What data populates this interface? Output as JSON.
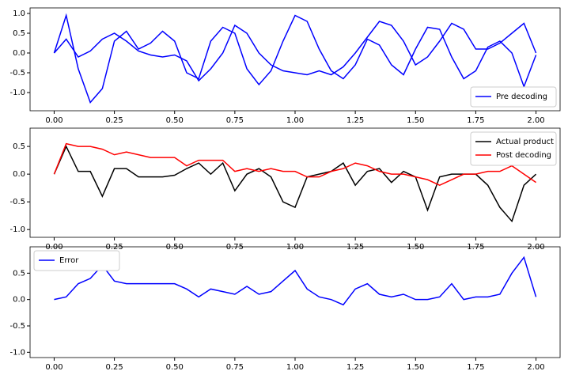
{
  "chart_data": [
    {
      "type": "line",
      "legend": "lower right",
      "xlim": [
        -0.1,
        2.1
      ],
      "ylim": [
        -1.46,
        1.14
      ],
      "xticks": [
        {
          "value": 0,
          "label": "0.00"
        },
        {
          "value": 0.25,
          "label": "0.25"
        },
        {
          "value": 0.5,
          "label": "0.50"
        },
        {
          "value": 0.75,
          "label": "0.75"
        },
        {
          "value": 1,
          "label": "1.00"
        },
        {
          "value": 1.25,
          "label": "1.25"
        },
        {
          "value": 1.5,
          "label": "1.50"
        },
        {
          "value": 1.75,
          "label": "1.75"
        },
        {
          "value": 2,
          "label": "2.00"
        }
      ],
      "yticks": [
        {
          "value": -1,
          "label": "-1.0"
        },
        {
          "value": -0.5,
          "label": "-0.5"
        },
        {
          "value": 0,
          "label": "0.0"
        },
        {
          "value": 0.5,
          "label": "0.5"
        },
        {
          "value": 1,
          "label": "1.0"
        }
      ],
      "x": [
        0,
        0.05,
        0.1,
        0.15,
        0.2,
        0.25,
        0.3,
        0.35,
        0.4,
        0.45,
        0.5,
        0.55,
        0.6,
        0.65,
        0.7,
        0.75,
        0.8,
        0.85,
        0.9,
        0.95,
        1,
        1.05,
        1.1,
        1.15,
        1.2,
        1.25,
        1.3,
        1.35,
        1.4,
        1.45,
        1.5,
        1.55,
        1.6,
        1.65,
        1.7,
        1.75,
        1.8,
        1.85,
        1.9,
        1.95,
        2
      ],
      "series": [
        {
          "name": "Pre decoding",
          "color": "#0000ff",
          "values": [
            0,
            0.95,
            -0.4,
            -1.25,
            -0.9,
            0.3,
            0.55,
            0.1,
            0.25,
            0.55,
            0.3,
            -0.5,
            -0.65,
            0.3,
            0.65,
            0.5,
            -0.4,
            -0.8,
            -0.45,
            0.3,
            0.95,
            0.8,
            0.1,
            -0.45,
            -0.65,
            -0.3,
            0.35,
            0.2,
            -0.3,
            -0.55,
            0.1,
            0.65,
            0.6,
            -0.1,
            -0.65,
            -0.45,
            0.15,
            0.3,
            0.0,
            -0.85,
            -0.05
          ]
        },
        {
          "color": "#0000ff",
          "values": [
            0,
            0.35,
            -0.1,
            0.05,
            0.35,
            0.5,
            0.3,
            0.05,
            -0.05,
            -0.1,
            -0.05,
            -0.2,
            -0.7,
            -0.4,
            0.0,
            0.7,
            0.5,
            0.0,
            -0.3,
            -0.45,
            -0.5,
            -0.55,
            -0.45,
            -0.55,
            -0.35,
            0.0,
            0.4,
            0.8,
            0.7,
            0.3,
            -0.3,
            -0.1,
            0.3,
            0.75,
            0.6,
            0.1,
            0.1,
            0.25,
            0.5,
            0.75,
            0.0
          ]
        }
      ]
    },
    {
      "type": "line",
      "legend": "upper right",
      "xlim": [
        -0.1,
        2.1
      ],
      "ylim": [
        -1.14,
        0.83
      ],
      "xticks": [
        {
          "value": 0,
          "label": "0.00"
        },
        {
          "value": 0.25,
          "label": "0.25"
        },
        {
          "value": 0.5,
          "label": "0.50"
        },
        {
          "value": 0.75,
          "label": "0.75"
        },
        {
          "value": 1,
          "label": "1.00"
        },
        {
          "value": 1.25,
          "label": "1.25"
        },
        {
          "value": 1.5,
          "label": "1.50"
        },
        {
          "value": 1.75,
          "label": "1.75"
        },
        {
          "value": 2,
          "label": "2.00"
        }
      ],
      "yticks": [
        {
          "value": -1,
          "label": "-1.0"
        },
        {
          "value": -0.5,
          "label": "-0.5"
        },
        {
          "value": 0,
          "label": "0.0"
        },
        {
          "value": 0.5,
          "label": "0.5"
        }
      ],
      "x": [
        0,
        0.05,
        0.1,
        0.15,
        0.2,
        0.25,
        0.3,
        0.35,
        0.4,
        0.45,
        0.5,
        0.55,
        0.6,
        0.65,
        0.7,
        0.75,
        0.8,
        0.85,
        0.9,
        0.95,
        1,
        1.05,
        1.1,
        1.15,
        1.2,
        1.25,
        1.3,
        1.35,
        1.4,
        1.45,
        1.5,
        1.55,
        1.6,
        1.65,
        1.7,
        1.75,
        1.8,
        1.85,
        1.9,
        1.95,
        2
      ],
      "series": [
        {
          "name": "Actual product",
          "color": "#000000",
          "values": [
            0,
            0.5,
            0.05,
            0.05,
            -0.4,
            0.1,
            0.1,
            -0.05,
            -0.05,
            -0.05,
            -0.02,
            0.1,
            0.2,
            0.0,
            0.2,
            -0.3,
            0.0,
            0.1,
            -0.05,
            -0.5,
            -0.6,
            -0.05,
            0.0,
            0.05,
            0.2,
            -0.2,
            0.05,
            0.1,
            -0.15,
            0.05,
            -0.05,
            -0.65,
            -0.05,
            0.0,
            0.0,
            0.0,
            -0.2,
            -0.6,
            -0.85,
            -0.2,
            0.0
          ]
        },
        {
          "name": "Post decoding",
          "color": "#ff0000",
          "values": [
            0,
            0.55,
            0.5,
            0.5,
            0.45,
            0.35,
            0.4,
            0.35,
            0.3,
            0.3,
            0.3,
            0.15,
            0.25,
            0.25,
            0.25,
            0.05,
            0.1,
            0.05,
            0.1,
            0.05,
            0.05,
            -0.05,
            -0.05,
            0.05,
            0.1,
            0.2,
            0.15,
            0.05,
            0.0,
            0.0,
            -0.05,
            -0.1,
            -0.2,
            -0.1,
            0.0,
            0.0,
            0.05,
            0.05,
            0.15,
            0.0,
            -0.15
          ]
        }
      ]
    },
    {
      "type": "line",
      "legend": "upper left",
      "xlim": [
        -0.1,
        2.1
      ],
      "ylim": [
        -1.1,
        1.0
      ],
      "xticks": [
        {
          "value": 0,
          "label": "0.00"
        },
        {
          "value": 0.25,
          "label": "0.25"
        },
        {
          "value": 0.5,
          "label": "0.50"
        },
        {
          "value": 0.75,
          "label": "0.75"
        },
        {
          "value": 1,
          "label": "1.00"
        },
        {
          "value": 1.25,
          "label": "1.25"
        },
        {
          "value": 1.5,
          "label": "1.50"
        },
        {
          "value": 1.75,
          "label": "1.75"
        },
        {
          "value": 2,
          "label": "2.00"
        }
      ],
      "yticks": [
        {
          "value": -1,
          "label": "-1.0"
        },
        {
          "value": -0.5,
          "label": "-0.5"
        },
        {
          "value": 0,
          "label": "0.0"
        },
        {
          "value": 0.5,
          "label": "0.5"
        }
      ],
      "x": [
        0,
        0.05,
        0.1,
        0.15,
        0.2,
        0.25,
        0.3,
        0.35,
        0.4,
        0.45,
        0.5,
        0.55,
        0.6,
        0.65,
        0.7,
        0.75,
        0.8,
        0.85,
        0.9,
        0.95,
        1,
        1.05,
        1.1,
        1.15,
        1.2,
        1.25,
        1.3,
        1.35,
        1.4,
        1.45,
        1.5,
        1.55,
        1.6,
        1.65,
        1.7,
        1.75,
        1.8,
        1.85,
        1.9,
        1.95,
        2
      ],
      "series": [
        {
          "name": "Error",
          "color": "#0000ff",
          "values": [
            0,
            0.05,
            0.3,
            0.4,
            0.65,
            0.35,
            0.3,
            0.3,
            0.3,
            0.3,
            0.3,
            0.2,
            0.05,
            0.2,
            0.15,
            0.1,
            0.25,
            0.1,
            0.15,
            0.35,
            0.55,
            0.2,
            0.05,
            0.0,
            -0.1,
            0.2,
            0.3,
            0.1,
            0.05,
            0.1,
            0.0,
            0.0,
            0.05,
            0.3,
            0.0,
            0.05,
            0.05,
            0.1,
            0.5,
            0.8,
            0.05
          ]
        }
      ]
    }
  ]
}
